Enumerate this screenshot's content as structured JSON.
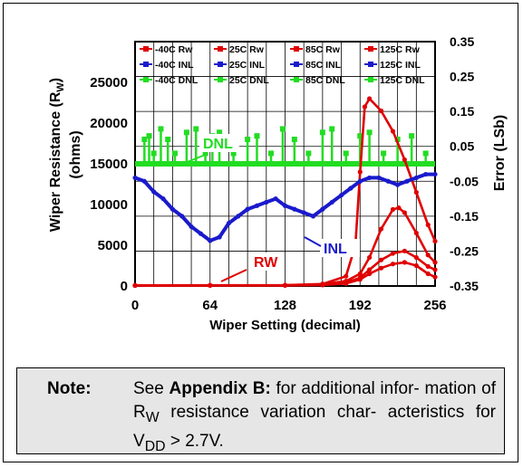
{
  "chart_data": {
    "type": "line",
    "title": "",
    "xlabel": "Wiper Setting (decimal)",
    "ylabel_left": "Wiper Resistance (R",
    "ylabel_left_sub": "W",
    "ylabel_left_tail": ")",
    "ylabel_left_units": "(ohms)",
    "ylabel_right": "Error (LSb)",
    "xlim": [
      0,
      256
    ],
    "ylim_left": [
      0,
      30000
    ],
    "ylim_right": [
      -0.35,
      0.35
    ],
    "x_ticks": [
      "0",
      "64",
      "128",
      "192",
      "256"
    ],
    "y_left_ticks": [
      "0",
      "5000",
      "10000",
      "15000",
      "20000",
      "25000"
    ],
    "y_right_ticks": [
      "0.35",
      "0.25",
      "0.15",
      "0.05",
      "-0.05",
      "-0.15",
      "-0.25",
      "-0.35"
    ],
    "grid": true,
    "legend_position": "top",
    "legend": [
      {
        "name": "-40C Rw",
        "color": "#e00000"
      },
      {
        "name": "25C Rw",
        "color": "#e00000"
      },
      {
        "name": "85C Rw",
        "color": "#e00000"
      },
      {
        "name": "125C Rw",
        "color": "#e00000"
      },
      {
        "name": "-40C INL",
        "color": "#1a1acc"
      },
      {
        "name": "25C INL",
        "color": "#1a1acc"
      },
      {
        "name": "85C INL",
        "color": "#1a1acc"
      },
      {
        "name": "125C INL",
        "color": "#1a1acc"
      },
      {
        "name": "-40C DNL",
        "color": "#22dd22"
      },
      {
        "name": "25C DNL",
        "color": "#22dd22"
      },
      {
        "name": "85C DNL",
        "color": "#22dd22"
      },
      {
        "name": "125C DNL",
        "color": "#22dd22"
      }
    ],
    "annotations": [
      {
        "text": "DNL",
        "color": "#22dd22"
      },
      {
        "text": "INL",
        "color": "#1a1acc"
      },
      {
        "text": "RW",
        "color": "#e00000"
      }
    ],
    "series": [
      {
        "name": "-40C Rw",
        "axis": "left",
        "x": [
          0,
          64,
          128,
          160,
          180,
          188,
          192,
          196,
          200,
          210,
          220,
          230,
          240,
          250,
          256
        ],
        "values": [
          80,
          90,
          100,
          250,
          1200,
          5000,
          14000,
          22000,
          23000,
          21500,
          19000,
          15500,
          11500,
          7500,
          5500
        ]
      },
      {
        "name": "25C Rw",
        "axis": "left",
        "x": [
          0,
          64,
          128,
          160,
          180,
          192,
          200,
          210,
          220,
          225,
          230,
          240,
          250,
          256
        ],
        "values": [
          70,
          80,
          90,
          200,
          600,
          1500,
          3500,
          7000,
          9400,
          9600,
          9000,
          6500,
          3800,
          2900
        ]
      },
      {
        "name": "85C Rw",
        "axis": "left",
        "x": [
          0,
          64,
          128,
          160,
          180,
          192,
          200,
          210,
          220,
          230,
          240,
          250,
          256
        ],
        "values": [
          60,
          70,
          80,
          150,
          400,
          1000,
          2000,
          3200,
          4000,
          4300,
          3500,
          2400,
          2000
        ]
      },
      {
        "name": "125C Rw",
        "axis": "left",
        "x": [
          0,
          64,
          128,
          160,
          180,
          192,
          200,
          210,
          220,
          230,
          240,
          250,
          256
        ],
        "values": [
          50,
          60,
          70,
          120,
          300,
          800,
          1500,
          2200,
          2700,
          2900,
          2500,
          1500,
          1100
        ]
      },
      {
        "name": "-40C INL",
        "axis": "right",
        "x": [
          0,
          8,
          16,
          24,
          32,
          40,
          48,
          56,
          64,
          72,
          80,
          88,
          96,
          104,
          112,
          120,
          128,
          136,
          144,
          152,
          160,
          168,
          176,
          184,
          192,
          200,
          208,
          216,
          224,
          232,
          240,
          248,
          256
        ],
        "values": [
          -0.04,
          -0.05,
          -0.08,
          -0.1,
          -0.13,
          -0.15,
          -0.18,
          -0.2,
          -0.22,
          -0.21,
          -0.17,
          -0.15,
          -0.13,
          -0.12,
          -0.11,
          -0.1,
          -0.12,
          -0.13,
          -0.14,
          -0.15,
          -0.13,
          -0.11,
          -0.09,
          -0.07,
          -0.05,
          -0.04,
          -0.04,
          -0.05,
          -0.06,
          -0.05,
          -0.04,
          -0.03,
          -0.03
        ]
      }
    ]
  },
  "note": {
    "label": "Note:",
    "prefix": "See ",
    "bold": "Appendix B:",
    "line1_rest": " for additional infor-",
    "line2_pre": "mation of R",
    "line2_sub": "W",
    "line2_post": " resistance variation char-",
    "line3_pre": "acteristics for V",
    "line3_sub": "DD",
    "line3_post": " > 2.7V."
  }
}
